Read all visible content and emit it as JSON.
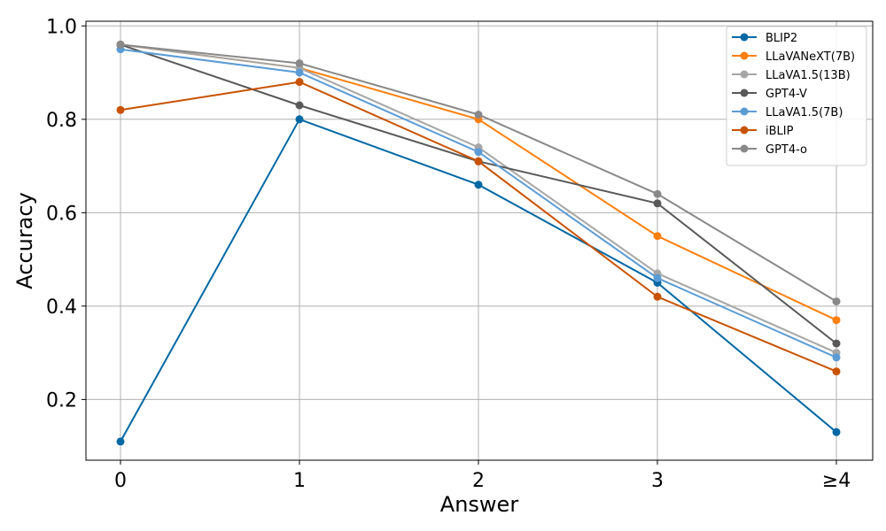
{
  "chart_data": {
    "type": "line",
    "categories": [
      "0",
      "1",
      "2",
      "3",
      "≥4"
    ],
    "xlabel": "Answer",
    "ylabel": "Accuracy",
    "ylim": [
      0.07,
      1.01
    ],
    "yticks": [
      "0.2",
      "0.4",
      "0.6",
      "0.8",
      "1.0"
    ],
    "grid": true,
    "legend_position": "top-right",
    "series": [
      {
        "name": "BLIP2",
        "color": "#0068a3",
        "values": [
          0.11,
          0.8,
          0.66,
          0.45,
          0.13
        ]
      },
      {
        "name": "LLaVANeXT(7B)",
        "color": "#ff7f0e",
        "values": [
          0.96,
          0.91,
          0.8,
          0.55,
          0.37
        ]
      },
      {
        "name": "LLaVA1.5(13B)",
        "color": "#a6a6a6",
        "values": [
          0.96,
          0.91,
          0.74,
          0.47,
          0.3
        ]
      },
      {
        "name": "GPT4-V",
        "color": "#595959",
        "values": [
          0.96,
          0.83,
          0.71,
          0.62,
          0.32
        ]
      },
      {
        "name": "LLaVA1.5(7B)",
        "color": "#5b9bd5",
        "values": [
          0.95,
          0.9,
          0.73,
          0.46,
          0.29
        ]
      },
      {
        "name": "iBLIP",
        "color": "#c85200",
        "values": [
          0.82,
          0.88,
          0.71,
          0.42,
          0.26
        ]
      },
      {
        "name": "GPT4-o",
        "color": "#898989",
        "values": [
          0.96,
          0.92,
          0.81,
          0.64,
          0.41
        ]
      }
    ]
  }
}
